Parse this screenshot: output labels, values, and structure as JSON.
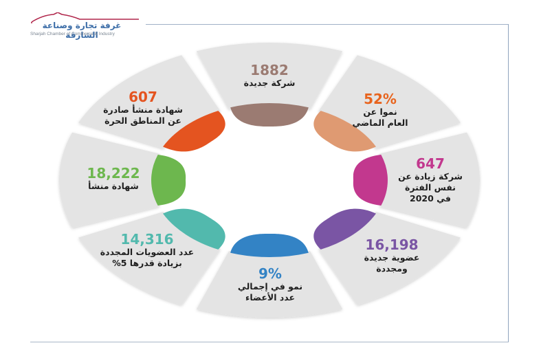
{
  "logo": {
    "arabic_name": "غرفة تجارة وصناعة الشارقة",
    "english_name": "Sharjah Chamber of Commerce & Industry",
    "roof_color": "#b0254a",
    "text_color": "#3d6ea8"
  },
  "infographic": {
    "ring_color": "#e4e4e4",
    "segments": [
      {
        "id": "new-companies",
        "value": "1882",
        "label_lines": [
          "شركة جديدة"
        ],
        "color": "#9b7b72"
      },
      {
        "id": "growth-last-year",
        "value": "52%",
        "label_lines": [
          "نموا عن",
          "العام الماضي"
        ],
        "color": "#df9a72"
      },
      {
        "id": "companies-increase-2020",
        "value": "647",
        "label_lines": [
          "شركة زيادة عن",
          "نفس الفترة",
          "في 2020"
        ],
        "color": "#c2388e"
      },
      {
        "id": "new-renewed-memberships",
        "value": "16,198",
        "label_lines": [
          "عضوية جديدة",
          "ومجددة"
        ],
        "color": "#7a55a4"
      },
      {
        "id": "total-members-growth",
        "value": "9%",
        "label_lines": [
          "نمو في إجمالي",
          "عدد الأعضاء"
        ],
        "color": "#3383c5"
      },
      {
        "id": "renewed-memberships",
        "value": "14,316",
        "label_lines": [
          "عدد العضويات المجددة",
          "بزيادة قدرها 5%"
        ],
        "color": "#52b9ad"
      },
      {
        "id": "origin-certificates",
        "value": "18,222",
        "label_lines": [
          "شهادة منشأ"
        ],
        "color": "#6db74e"
      },
      {
        "id": "free-zone-certificates",
        "value": "607",
        "label_lines": [
          "شهادة منشأ صادرة",
          "عن المناطق الحرة"
        ],
        "color": "#e45420"
      }
    ]
  },
  "chart_data": {
    "type": "radial-infographic",
    "title": "",
    "categories": [
      "شركة جديدة",
      "نموا عن العام الماضي",
      "شركة زيادة عن نفس الفترة في 2020",
      "عضوية جديدة ومجددة",
      "نمو في إجمالي عدد الأعضاء",
      "عدد العضويات المجددة بزيادة قدرها 5%",
      "شهادة منشأ",
      "شهادة منشأ صادرة عن المناطق الحرة"
    ],
    "values": [
      "1882",
      "52%",
      "647",
      "16,198",
      "9%",
      "14,316",
      "18,222",
      "607"
    ]
  }
}
